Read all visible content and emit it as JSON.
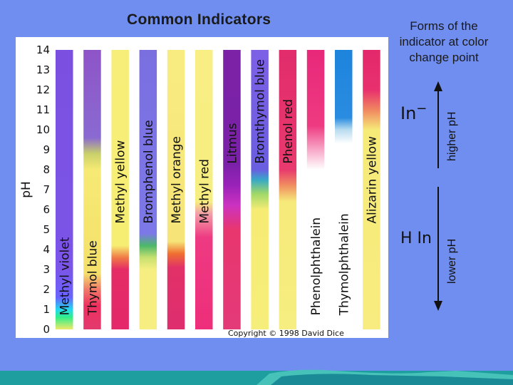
{
  "title": "Common Indicators",
  "chart": {
    "y_axis_label": "pH",
    "y_ticks": [
      0,
      1,
      2,
      3,
      4,
      5,
      6,
      7,
      8,
      9,
      10,
      11,
      12,
      13,
      14
    ],
    "indicators": [
      {
        "name": "Methyl violet",
        "stops": [
          [
            0,
            "#f0ea6a"
          ],
          [
            0.6,
            "#33ee88"
          ],
          [
            1.0,
            "#22d8f0"
          ],
          [
            1.6,
            "#6a63ff"
          ],
          [
            3,
            "#7b55e8"
          ],
          [
            14,
            "#7b50e0"
          ]
        ],
        "label_pos": "low"
      },
      {
        "name": "Thymol blue",
        "stops": [
          [
            0,
            "#e23a6e"
          ],
          [
            1.2,
            "#ee3060"
          ],
          [
            2.0,
            "#f07a6a"
          ],
          [
            2.8,
            "#f4e06a"
          ],
          [
            8.0,
            "#f6ea74"
          ],
          [
            8.8,
            "#c9d06a"
          ],
          [
            9.6,
            "#8a6ad0"
          ],
          [
            14,
            "#8e54c8"
          ]
        ],
        "label_pos": "low"
      },
      {
        "name": "Methyl yellow",
        "stops": [
          [
            0,
            "#e4286a"
          ],
          [
            3.0,
            "#e52c66"
          ],
          [
            3.6,
            "#f07a46"
          ],
          [
            4.2,
            "#f6ee72"
          ],
          [
            14,
            "#f7ee7a"
          ]
        ],
        "label_pos": "mid"
      },
      {
        "name": "Bromphenol blue",
        "stops": [
          [
            0,
            "#f6ee80"
          ],
          [
            3.0,
            "#f6ee80"
          ],
          [
            3.6,
            "#c6e070"
          ],
          [
            4.2,
            "#4cb86a"
          ],
          [
            4.8,
            "#7c78e8"
          ],
          [
            14,
            "#7b6fe0"
          ]
        ],
        "label_pos": "mid"
      },
      {
        "name": "Methyl orange",
        "stops": [
          [
            0,
            "#de2e6e"
          ],
          [
            3.1,
            "#e23068"
          ],
          [
            3.8,
            "#f07030"
          ],
          [
            4.4,
            "#f6e478"
          ],
          [
            14,
            "#f8ec80"
          ]
        ],
        "label_pos": "mid"
      },
      {
        "name": "Methyl red",
        "stops": [
          [
            0,
            "#ee2e7a"
          ],
          [
            4.6,
            "#ee3a82"
          ],
          [
            5.8,
            "#f2a0a8"
          ],
          [
            6.4,
            "#f6ee80"
          ],
          [
            14,
            "#f8ee84"
          ]
        ],
        "label_pos": "mid"
      },
      {
        "name": "Litmus",
        "stops": [
          [
            0,
            "#e33a78"
          ],
          [
            5.0,
            "#e8366e"
          ],
          [
            6.2,
            "#cc32c0"
          ],
          [
            7.2,
            "#9a22b8"
          ],
          [
            8.3,
            "#7a21a8"
          ],
          [
            14,
            "#7b22a6"
          ]
        ],
        "label_pos": "high"
      },
      {
        "name": "Bromthymol blue",
        "stops": [
          [
            0,
            "#f6ee7a"
          ],
          [
            6.0,
            "#f6ec74"
          ],
          [
            6.8,
            "#9ed868"
          ],
          [
            7.5,
            "#38a8c8"
          ],
          [
            8.0,
            "#6a5ee0"
          ],
          [
            14,
            "#7d60e6"
          ]
        ],
        "label_pos": "high"
      },
      {
        "name": "Phenol red",
        "stops": [
          [
            0,
            "#f6ee80"
          ],
          [
            6.4,
            "#f6ea7a"
          ],
          [
            7.2,
            "#f09060"
          ],
          [
            8.0,
            "#e83a6e"
          ],
          [
            14,
            "#e22c6c"
          ]
        ],
        "label_pos": "high"
      },
      {
        "name": "Phenolphthalein",
        "stops": [
          [
            0,
            "#ffffff"
          ],
          [
            8.0,
            "#ffffff"
          ],
          [
            9.0,
            "#f8a8c8"
          ],
          [
            10.2,
            "#ee3a80"
          ],
          [
            14,
            "#e8287a"
          ]
        ],
        "label_pos": "low"
      },
      {
        "name": "Thymolphthalein",
        "stops": [
          [
            0,
            "#ffffff"
          ],
          [
            9.3,
            "#ffffff"
          ],
          [
            10.0,
            "#b8dcf0"
          ],
          [
            10.6,
            "#2a8ce0"
          ],
          [
            14,
            "#1d84dc"
          ]
        ],
        "label_pos": "low"
      },
      {
        "name": "Alizarin yellow",
        "stops": [
          [
            0,
            "#f8ec80"
          ],
          [
            10.0,
            "#f6ea78"
          ],
          [
            11.0,
            "#f08660"
          ],
          [
            12.0,
            "#e8306e"
          ],
          [
            14,
            "#e4286c"
          ]
        ],
        "label_pos": "mid"
      }
    ],
    "copyright": "Copyright © 1998 David Dice"
  },
  "side": {
    "forms_title_line1": "Forms of the",
    "forms_title_line2": "indicator at color",
    "forms_title_line3": "change point",
    "in_minus": "In",
    "in_minus_sup": "−",
    "h_in": "H In",
    "higher_ph": "higher pH",
    "lower_ph": "lower pH"
  },
  "colors": {
    "background": "#6f8ef0",
    "panel": "#ffffff",
    "band": "#1b9a9e"
  }
}
